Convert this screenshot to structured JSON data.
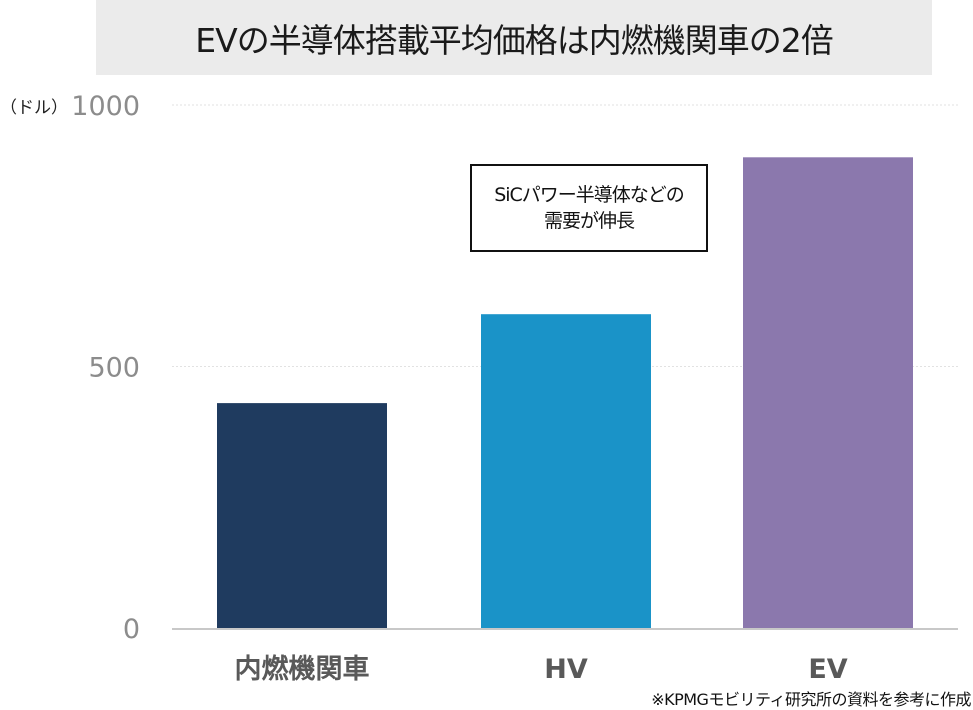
{
  "title": "EVの半導体搭載平均価格は内燃機関車の2倍",
  "unit_label": "（ドル）",
  "callout": {
    "line1": "SiCパワー半導体などの",
    "line2": "需要が伸長"
  },
  "footnote": "※KPMGモビリティ研究所の資料を参考に作成",
  "colors": {
    "title_background": "#ebebeb",
    "bar_ice": "#1f3b5f",
    "bar_hv": "#1a93c8",
    "bar_ev": "#8b78ad",
    "gridline": "#e2e2e2",
    "axis_line": "#c8c8c8",
    "tick_text": "#8c8c8c",
    "category_text": "#595959"
  },
  "chart_data": {
    "type": "bar",
    "categories": [
      "内燃機関車",
      "HV",
      "EV"
    ],
    "values": [
      430,
      600,
      900
    ],
    "ylim": [
      0,
      1000
    ],
    "yticks": [
      "0",
      "500",
      "1000"
    ],
    "grid": true,
    "title": "EVの半導体搭載平均価格は内燃機関車の2倍",
    "xlabel": "",
    "ylabel": "（ドル）"
  }
}
